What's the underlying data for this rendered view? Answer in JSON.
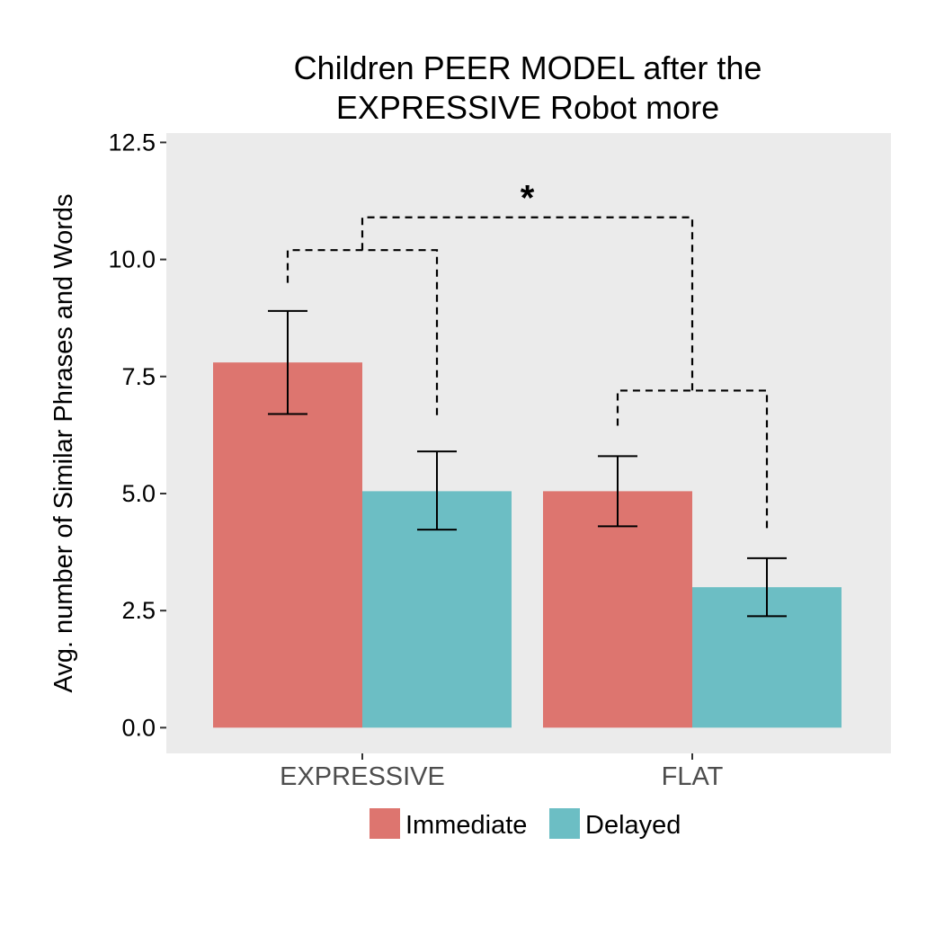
{
  "chart_data": {
    "type": "bar",
    "title_lines": [
      "Children PEER MODEL after the",
      "EXPRESSIVE Robot more"
    ],
    "xlabel": "",
    "ylabel": "Avg. number of Similar Phrases and Words",
    "categories": [
      "EXPRESSIVE",
      "FLAT"
    ],
    "series": [
      {
        "name": "Immediate",
        "color": "#dd756f",
        "values": [
          7.8,
          5.05
        ],
        "error_low": [
          6.7,
          4.3
        ],
        "error_high": [
          8.9,
          5.8
        ]
      },
      {
        "name": "Delayed",
        "color": "#6cbec4",
        "values": [
          5.05,
          3.0
        ],
        "error_low": [
          4.23,
          2.38
        ],
        "error_high": [
          5.9,
          3.62
        ]
      }
    ],
    "ylim": [
      -0.55,
      12.7
    ],
    "yticks": [
      "0.0",
      "2.5",
      "5.0",
      "7.5",
      "10.0",
      "12.5"
    ],
    "ytick_values": [
      0,
      2.5,
      5,
      7.5,
      10,
      12.5
    ],
    "grid": false,
    "panel_background": "#ebebeb",
    "legend_position": "bottom",
    "significance": {
      "label": "*",
      "outer_bracket_y": 10.9,
      "inner_bracket_y": [
        10.2,
        7.2
      ],
      "inner_leg_bottom_y": [
        [
          9.5,
          6.6
        ],
        [
          6.45,
          4.25
        ]
      ]
    }
  }
}
